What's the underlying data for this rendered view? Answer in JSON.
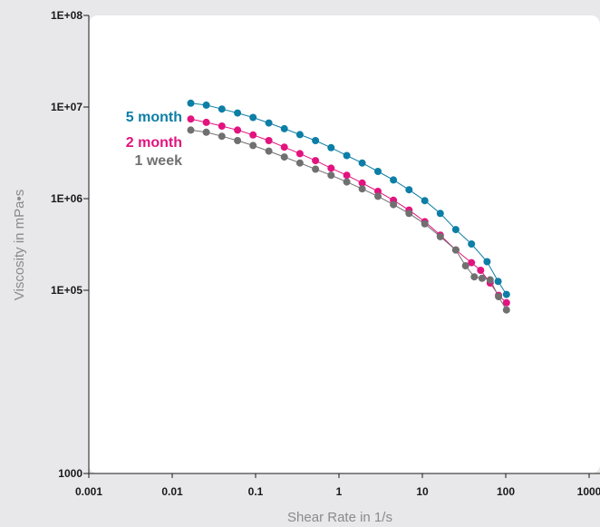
{
  "chart_data": {
    "type": "line",
    "title": "",
    "xlabel": "Shear Rate in 1/s",
    "ylabel": "Viscosity in mPa•s",
    "x_scale": "log",
    "y_scale": "log",
    "xlim": [
      0.001,
      1000
    ],
    "ylim": [
      1000,
      100000000
    ],
    "x_tick_labels": [
      "0.001",
      "0.01",
      "0.1",
      "1",
      "10",
      "100",
      "1000"
    ],
    "y_tick_labels": [
      "1000",
      "1E+05",
      "1E+06",
      "1E+07",
      "1E+08"
    ],
    "grid": false,
    "legend": "inline-left",
    "x": [
      0.0167,
      0.0256,
      0.0394,
      0.0607,
      0.0933,
      0.144,
      0.221,
      0.34,
      0.523,
      0.804,
      1.24,
      1.9,
      2.93,
      4.5,
      6.93,
      10.7,
      16.4,
      25.2,
      38.8,
      59.7,
      91.8
    ],
    "series": [
      {
        "name": "5 month",
        "color": "#0d7ea6",
        "values": [
          11000000,
          10500000,
          9500000,
          8600000,
          7700000,
          6700000,
          5800000,
          5000000,
          4300000,
          3600000,
          2950000,
          2450000,
          1980000,
          1600000,
          1250000,
          950000,
          690000,
          460000,
          320000,
          205000,
          125000,
          90000
        ],
        "x": [
          0.0167,
          0.0256,
          0.0394,
          0.0607,
          0.0933,
          0.144,
          0.221,
          0.34,
          0.523,
          0.804,
          1.24,
          1.9,
          2.93,
          4.5,
          6.93,
          10.7,
          16.4,
          25.2,
          38.8,
          59.7,
          81.0,
          102.0
        ]
      },
      {
        "name": "2 month",
        "color": "#e2137e",
        "values": [
          7400000,
          6800000,
          6200000,
          5600000,
          4950000,
          4300000,
          3650000,
          3100000,
          2600000,
          2150000,
          1800000,
          1480000,
          1200000,
          960000,
          750000,
          560000,
          400000,
          275000,
          200000,
          165000,
          120000,
          88000,
          73000
        ],
        "x": [
          0.0167,
          0.0256,
          0.0394,
          0.0607,
          0.0933,
          0.144,
          0.221,
          0.34,
          0.523,
          0.804,
          1.24,
          1.9,
          2.93,
          4.5,
          6.93,
          10.7,
          16.4,
          25.2,
          38.8,
          50.0,
          65.0,
          82.0,
          102.0
        ]
      },
      {
        "name": "1 week",
        "color": "#707070",
        "values": [
          5600000,
          5300000,
          4800000,
          4300000,
          3800000,
          3300000,
          2850000,
          2450000,
          2100000,
          1800000,
          1520000,
          1280000,
          1060000,
          860000,
          690000,
          530000,
          385000,
          275000,
          185000,
          140000,
          135000,
          130000,
          85000,
          61000
        ],
        "x": [
          0.0167,
          0.0256,
          0.0394,
          0.0607,
          0.0933,
          0.144,
          0.221,
          0.34,
          0.523,
          0.804,
          1.24,
          1.9,
          2.93,
          4.5,
          6.93,
          10.7,
          16.4,
          25.2,
          33.0,
          42.0,
          52.0,
          65.0,
          82.0,
          102.0
        ]
      }
    ]
  }
}
